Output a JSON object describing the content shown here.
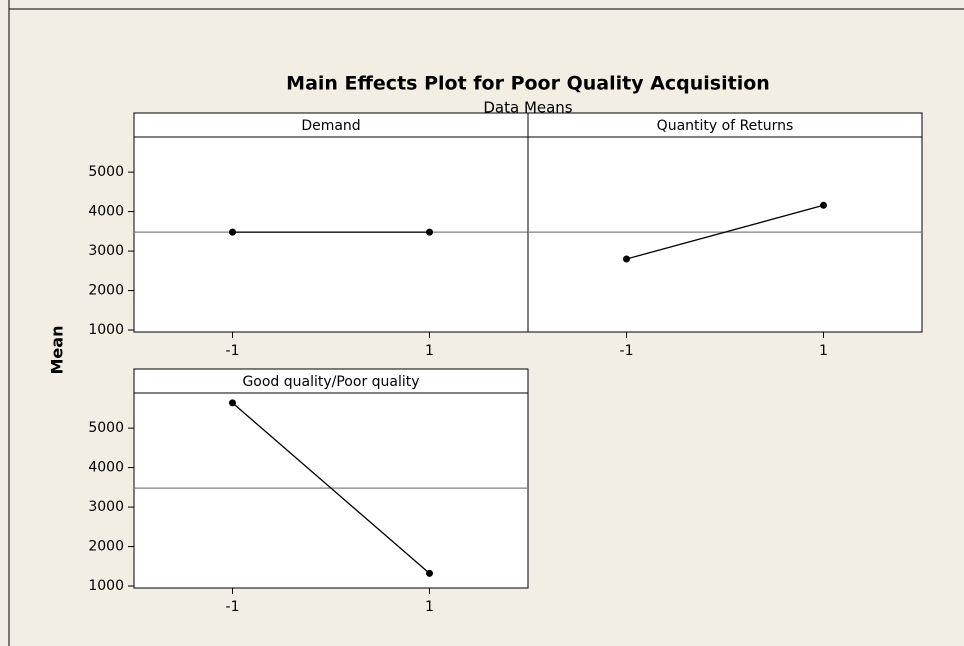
{
  "title": "Main Effects Plot for Poor Quality Acquisition",
  "subtitle": "Data Means",
  "ylabel": "Mean",
  "chart_data": [
    {
      "type": "line",
      "title": "Demand",
      "x": [
        -1,
        1
      ],
      "values": [
        3480,
        3480
      ],
      "color": "#000000",
      "xlim": [
        -2,
        2
      ],
      "xticks": [
        -1,
        1
      ],
      "ylim": [
        950,
        5890
      ],
      "yticks": [
        1000,
        2000,
        3000,
        4000,
        5000
      ],
      "reference_line": 3480,
      "reference_color": "#808080"
    },
    {
      "type": "line",
      "title": "Quantity of Returns",
      "x": [
        -1,
        1
      ],
      "values": [
        2800,
        4160
      ],
      "color": "#000000",
      "xlim": [
        -2,
        2
      ],
      "xticks": [
        -1,
        1
      ],
      "ylim": [
        950,
        5890
      ],
      "yticks": [
        1000,
        2000,
        3000,
        4000,
        5000
      ],
      "reference_line": 3480,
      "reference_color": "#808080"
    },
    {
      "type": "line",
      "title": "Good quality/Poor quality",
      "x": [
        -1,
        1
      ],
      "values": [
        5640,
        1320
      ],
      "color": "#000000",
      "xlim": [
        -2,
        2
      ],
      "xticks": [
        -1,
        1
      ],
      "ylim": [
        950,
        5890
      ],
      "yticks": [
        1000,
        2000,
        3000,
        4000,
        5000
      ],
      "reference_line": 3480,
      "reference_color": "#808080"
    }
  ]
}
